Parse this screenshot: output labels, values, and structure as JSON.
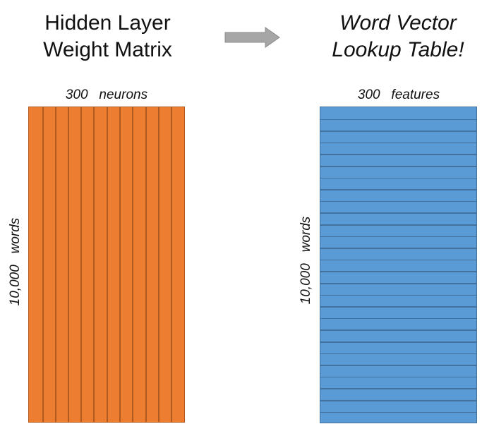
{
  "left_title": {
    "line1": "Hidden Layer",
    "line2": "Weight Matrix"
  },
  "right_title": {
    "line1": "Word Vector",
    "line2": "Lookup Table!"
  },
  "left_matrix": {
    "top_label": "300   neurons",
    "side_label": "10,000   words"
  },
  "right_matrix": {
    "top_label": "300   features",
    "side_label": "10,000   words"
  },
  "colors": {
    "weight_fill": "#ed7d31",
    "weight_stroke": "#ae5a21",
    "lookup_fill": "#5b9bd5",
    "lookup_stroke": "#41719c",
    "arrow_fill": "#a6a6a6"
  }
}
